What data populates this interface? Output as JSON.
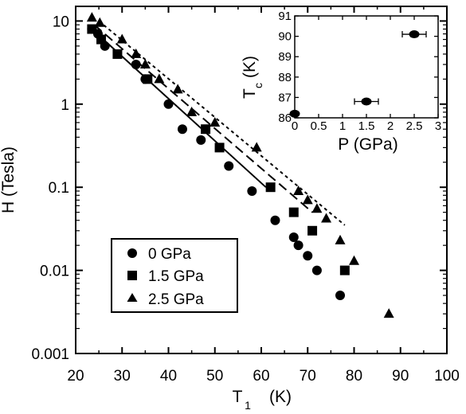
{
  "chart_data": [
    {
      "type": "scatter",
      "xlabel": "T",
      "xlabel_sub": "1",
      "xlabel_unit": "(K)",
      "ylabel": "H (Tesla)",
      "xlim": [
        20,
        100
      ],
      "ylim": [
        0.001,
        15
      ],
      "yscale": "log",
      "xticks": [
        20,
        30,
        40,
        50,
        60,
        70,
        80,
        90,
        100
      ],
      "xtick_labels": [
        "20",
        "30",
        "40",
        "50",
        "60",
        "70",
        "80",
        "90",
        "100"
      ],
      "yticks": [
        0.001,
        0.01,
        0.1,
        1,
        10
      ],
      "ytick_labels": [
        "0.001",
        "0.01",
        "0.1",
        "1",
        "10"
      ],
      "legend_position": "lower-left",
      "series": [
        {
          "name": "0 GPa",
          "marker": "circle",
          "points": [
            [
              23.5,
              8
            ],
            [
              24.8,
              7
            ],
            [
              26.3,
              5
            ],
            [
              33,
              3
            ],
            [
              35,
              2
            ],
            [
              40,
              1
            ],
            [
              43,
              0.5
            ],
            [
              47,
              0.37
            ],
            [
              53,
              0.18
            ],
            [
              58,
              0.09
            ],
            [
              63,
              0.04
            ],
            [
              67,
              0.025
            ],
            [
              68,
              0.02
            ],
            [
              70,
              0.015
            ],
            [
              72,
              0.01
            ],
            [
              77,
              0.005
            ]
          ]
        },
        {
          "name": "1.5 GPa",
          "marker": "square",
          "points": [
            [
              23.5,
              8
            ],
            [
              25.5,
              6
            ],
            [
              29,
              4
            ],
            [
              35.5,
              2
            ],
            [
              48,
              0.5
            ],
            [
              51,
              0.3
            ],
            [
              62,
              0.1
            ],
            [
              67,
              0.05
            ],
            [
              71,
              0.03
            ],
            [
              78,
              0.01
            ]
          ]
        },
        {
          "name": "2.5 GPa",
          "marker": "triangle",
          "points": [
            [
              23.5,
              11
            ],
            [
              25.2,
              9.5
            ],
            [
              30,
              6
            ],
            [
              33,
              4
            ],
            [
              35,
              3
            ],
            [
              38,
              2
            ],
            [
              42,
              1.5
            ],
            [
              45,
              0.8
            ],
            [
              50,
              0.6
            ],
            [
              59,
              0.3
            ],
            [
              68,
              0.09
            ],
            [
              70,
              0.07
            ],
            [
              72,
              0.055
            ],
            [
              74,
              0.042
            ],
            [
              77,
              0.023
            ],
            [
              80,
              0.013
            ],
            [
              87.5,
              0.003
            ]
          ]
        }
      ],
      "fit_lines": [
        {
          "series": "0 GPa",
          "style": "solid",
          "points": [
            [
              23,
              8.5
            ],
            [
              61,
              0.1
            ]
          ]
        },
        {
          "series": "1.5 GPa",
          "style": "dashed",
          "points": [
            [
              24,
              9
            ],
            [
              71,
              0.05
            ]
          ]
        },
        {
          "series": "2.5 GPa",
          "style": "dotted",
          "points": [
            [
              25,
              10
            ],
            [
              78,
              0.035
            ]
          ]
        }
      ]
    },
    {
      "type": "scatter",
      "inset": true,
      "xlabel": "P (GPa)",
      "ylabel": "T",
      "ylabel_sub": "c",
      "ylabel_unit": "(K)",
      "xlim": [
        0,
        3
      ],
      "ylim": [
        86,
        91
      ],
      "xticks": [
        0,
        0.5,
        1,
        1.5,
        2,
        2.5,
        3
      ],
      "xtick_labels": [
        "0",
        "0.5",
        "1",
        "1.5",
        "2",
        "2.5",
        "3"
      ],
      "yticks": [
        86,
        87,
        88,
        89,
        90,
        91
      ],
      "ytick_labels": [
        "86",
        "87",
        "88",
        "89",
        "90",
        "91"
      ],
      "series": [
        {
          "marker": "circle",
          "points": [
            [
              0,
              86.2
            ],
            [
              1.5,
              86.8
            ],
            [
              2.5,
              90.1
            ]
          ],
          "x_error": [
            0,
            0.25,
            0.25
          ]
        }
      ]
    }
  ]
}
